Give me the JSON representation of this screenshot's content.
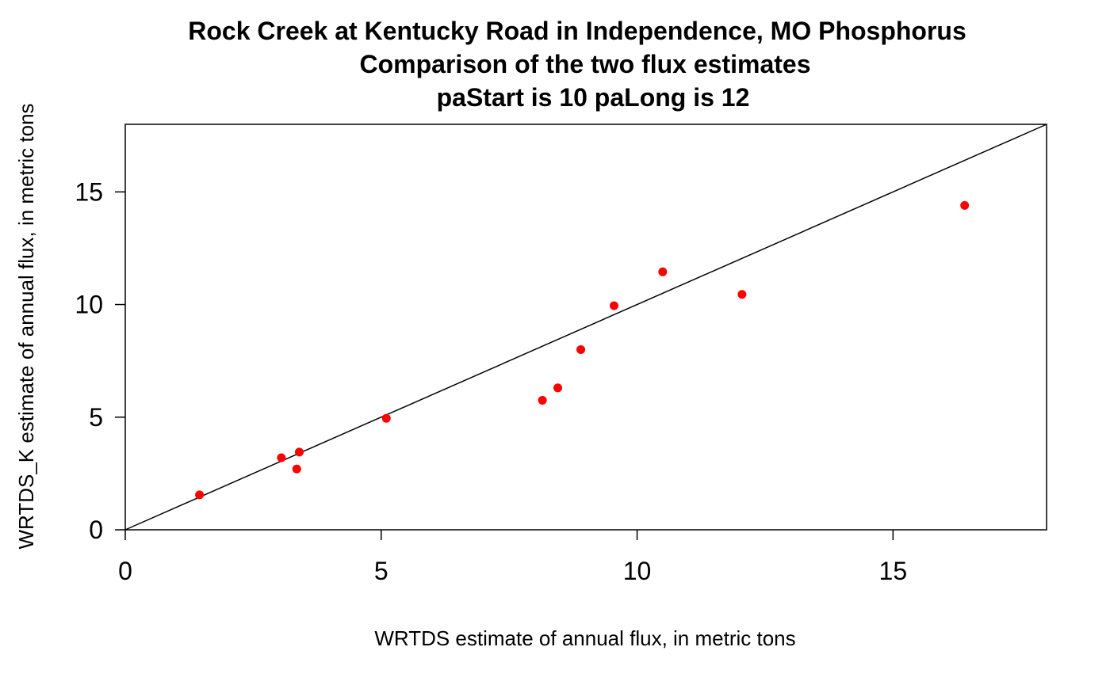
{
  "chart_data": {
    "type": "scatter",
    "title": [
      "Rock Creek at Kentucky Road in Independence, MO  Phosphorus",
      "Comparison of the two flux estimates",
      "paStart is 10  paLong is 12"
    ],
    "xlabel": "WRTDS estimate of annual flux, in metric tons",
    "ylabel": "WRTDS_K estimate of annual flux, in metric tons",
    "xlim": [
      0,
      18
    ],
    "ylim": [
      0,
      18
    ],
    "x_ticks": [
      0,
      5,
      10,
      15
    ],
    "y_ticks": [
      0,
      5,
      10,
      15
    ],
    "x_tick_labels": [
      "0",
      "5",
      "10",
      "15"
    ],
    "y_tick_labels": [
      "0",
      "5",
      "10",
      "15"
    ],
    "reference_line": {
      "type": "y=x",
      "color": "#000000"
    },
    "point_color": "#ff0000",
    "grid": false,
    "points": [
      {
        "x": 1.45,
        "y": 1.55
      },
      {
        "x": 3.05,
        "y": 3.2
      },
      {
        "x": 3.35,
        "y": 2.7
      },
      {
        "x": 3.4,
        "y": 3.45
      },
      {
        "x": 5.1,
        "y": 4.95
      },
      {
        "x": 8.15,
        "y": 5.75
      },
      {
        "x": 8.45,
        "y": 6.3
      },
      {
        "x": 8.9,
        "y": 8.0
      },
      {
        "x": 9.55,
        "y": 9.95
      },
      {
        "x": 10.5,
        "y": 11.45
      },
      {
        "x": 12.05,
        "y": 10.45
      },
      {
        "x": 16.4,
        "y": 14.4
      }
    ]
  }
}
